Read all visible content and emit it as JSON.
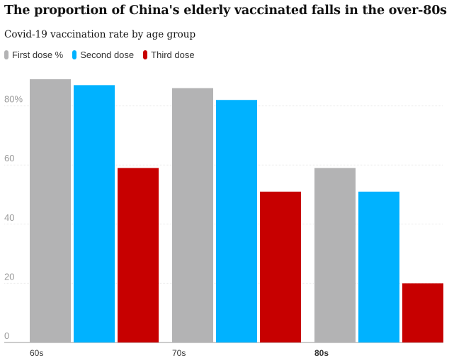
{
  "chart_data": {
    "type": "bar",
    "title": "The proportion of China's elderly vaccinated falls in the over-80s",
    "subtitle": "Covid-19 vaccination rate by age group",
    "categories": [
      "60s",
      "70s",
      "80s"
    ],
    "series": [
      {
        "name": "First dose %",
        "color": "#b3b3b4",
        "values": [
          89,
          86,
          59
        ]
      },
      {
        "name": "Second dose",
        "color": "#00b2ff",
        "values": [
          87,
          82,
          51
        ]
      },
      {
        "name": "Third dose",
        "color": "#c70000",
        "values": [
          59,
          51,
          20
        ]
      }
    ],
    "ylim": [
      0,
      90
    ],
    "yticks": [
      0,
      20,
      40,
      60,
      80
    ],
    "ytick_labels": [
      "0",
      "20",
      "40",
      "60",
      "80%"
    ],
    "grid": true,
    "legend_position": "top-left",
    "xlabel": "",
    "ylabel": ""
  }
}
